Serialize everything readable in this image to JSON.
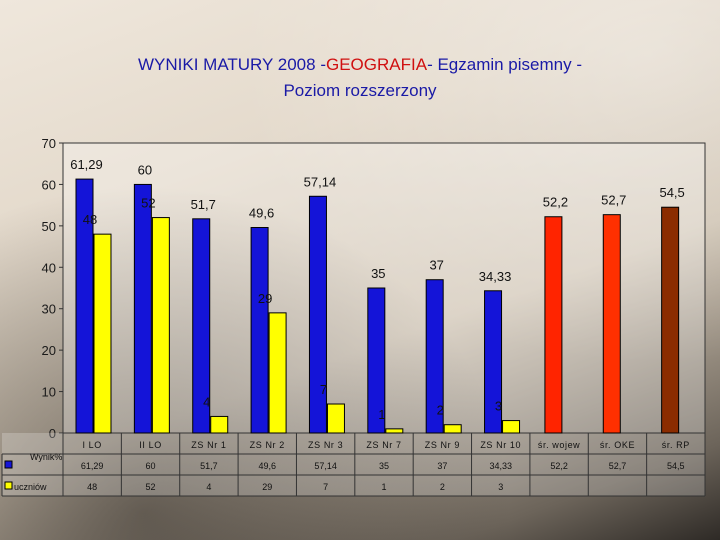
{
  "title": {
    "line1_pre": "WYNIKI MATURY 2008  -",
    "line1_highlight": "GEOGRAFIA",
    "line1_post": "- Egzamin pisemny -",
    "line2": "Poziom rozszerzony"
  },
  "colors": {
    "wynik": "#1414d8",
    "uczniow": "#ffff00",
    "wojew": "#ff2400",
    "oke": "#ff3000",
    "rp": "#8b2c00",
    "highlight": "#d01010",
    "title": "#1a1aa6"
  },
  "chart_data": {
    "type": "bar",
    "title": "WYNIKI MATURY 2008  -GEOGRAFIA- Egzamin pisemny - Poziom rozszerzony",
    "categories": [
      "I LO",
      "II LO",
      "ZS Nr 1",
      "ZS Nr 2",
      "ZS Nr 3",
      "ZS Nr 7",
      "ZS Nr 9",
      "ZS Nr 10",
      "śr. wojew",
      "śr. OKE",
      "śr. RP"
    ],
    "series": [
      {
        "name": "Wynik%",
        "values": [
          61.29,
          60,
          51.7,
          49.6,
          57.14,
          35,
          37,
          34.33,
          52.2,
          52.7,
          54.5
        ],
        "labels": [
          "61,29",
          "60",
          "51,7",
          "49,6",
          "57,14",
          "35",
          "37",
          "34,33",
          "52,2",
          "52,7",
          "54,5"
        ]
      },
      {
        "name": "uczniów",
        "values": [
          48,
          52,
          4,
          29,
          7,
          1,
          2,
          3,
          null,
          null,
          null
        ],
        "labels": [
          "48",
          "52",
          "4",
          "29",
          "7",
          "1",
          "2",
          "3",
          "",
          "",
          ""
        ]
      }
    ],
    "ylim": [
      0,
      70
    ],
    "yticks": [
      "0",
      "10",
      "20",
      "30",
      "40",
      "50",
      "60",
      "70"
    ],
    "grid": false,
    "legend": "data-table"
  }
}
